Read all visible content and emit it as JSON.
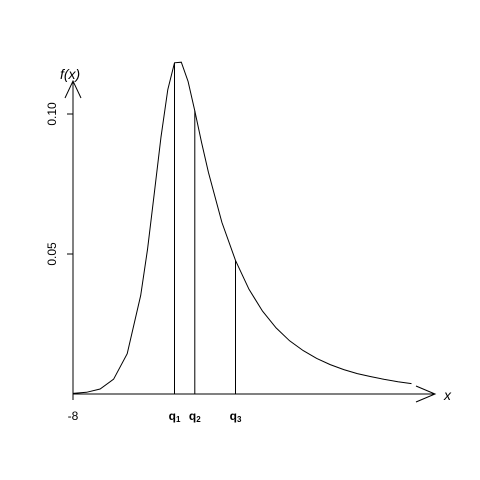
{
  "chart_data": {
    "type": "line",
    "title": "",
    "xlabel": "x",
    "ylabel": "f(x)",
    "x_tick_labels": [
      "-8"
    ],
    "y_ticks": [
      {
        "value": 0.05,
        "label": "0.05"
      },
      {
        "value": 0.1,
        "label": "0.10"
      }
    ],
    "xlim": [
      -8,
      18
    ],
    "ylim": [
      0,
      0.13
    ],
    "series": [
      {
        "x": [
          -8,
          -7,
          -6,
          -5,
          -4,
          -3,
          -2.5,
          -2,
          -1.5,
          -1,
          -0.5,
          0,
          0.5,
          1,
          1.5,
          2,
          3,
          4,
          5,
          6,
          7,
          8,
          9,
          10,
          11,
          12,
          13,
          14,
          15,
          16,
          17
        ],
        "values": [
          0.0002,
          0.0006,
          0.0018,
          0.0053,
          0.0144,
          0.0352,
          0.0516,
          0.0714,
          0.0918,
          0.1087,
          0.1183,
          0.1185,
          0.1116,
          0.1011,
          0.0898,
          0.0792,
          0.0613,
          0.0477,
          0.0374,
          0.0296,
          0.0236,
          0.019,
          0.0155,
          0.0127,
          0.0105,
          0.0087,
          0.0073,
          0.0062,
          0.0052,
          0.0044,
          0.0037
        ]
      }
    ],
    "quantiles": [
      {
        "label": "q",
        "sub": "1",
        "x": -0.5
      },
      {
        "label": "q",
        "sub": "2",
        "x": 1.0
      },
      {
        "label": "q",
        "sub": "3",
        "x": 4.0
      }
    ]
  }
}
